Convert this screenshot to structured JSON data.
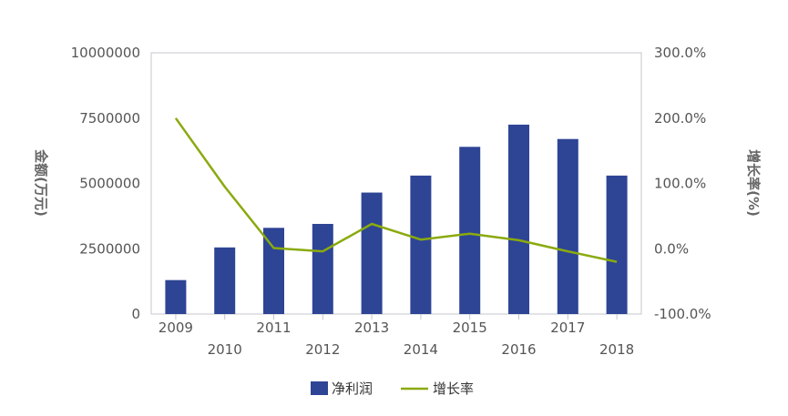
{
  "chart_data": {
    "type": "bar",
    "title": "",
    "categories": [
      "2009",
      "2010",
      "2011",
      "2012",
      "2013",
      "2014",
      "2015",
      "2016",
      "2017",
      "2018"
    ],
    "series": [
      {
        "name": "净利润",
        "type": "bar",
        "axis": "left",
        "color": "#2e4495",
        "values": [
          1300000,
          2550000,
          3300000,
          3450000,
          4650000,
          5300000,
          6400000,
          7250000,
          6700000,
          5300000
        ]
      },
      {
        "name": "增长率",
        "type": "line",
        "axis": "right",
        "color": "#8aaa0f",
        "values": [
          200.0,
          95.0,
          1.0,
          -4.0,
          38.0,
          14.0,
          23.0,
          13.0,
          -4.0,
          -20.0
        ]
      }
    ],
    "ylabel": "金额(万元)",
    "y2label": "增长率(%)",
    "ylim": [
      0,
      10000000
    ],
    "y2lim": [
      -100,
      300
    ],
    "yticks": [
      "0",
      "2500000",
      "5000000",
      "7500000",
      "10000000"
    ],
    "y2ticks": [
      "-100.0%",
      "0.0%",
      "100.0%",
      "200.0%",
      "300.0%"
    ],
    "grid": false,
    "legend_position": "bottom"
  }
}
